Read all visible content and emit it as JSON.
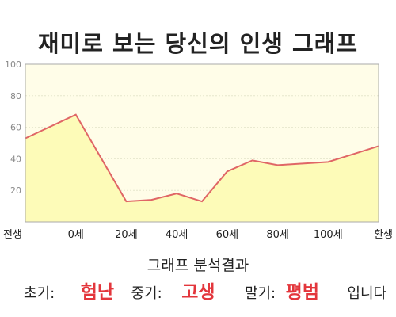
{
  "chart_data": {
    "type": "area",
    "title": "재미로 보는 당신의 인생 그래프",
    "xlabel": "",
    "ylabel": "",
    "ylim": [
      0,
      100
    ],
    "yticks": [
      20,
      40,
      60,
      80,
      100
    ],
    "xticks": [
      "전생",
      "0세",
      "20세",
      "40세",
      "60세",
      "80세",
      "100세",
      "환생"
    ],
    "x": [
      0,
      1,
      2,
      2.5,
      3,
      3.5,
      4,
      4.5,
      5,
      5.5,
      6,
      6.5,
      7
    ],
    "values": [
      53,
      68,
      13,
      14,
      18,
      13,
      32,
      39,
      36,
      37,
      38,
      43,
      48
    ],
    "grid": true,
    "colors": {
      "line": "#e06666",
      "fill": "#fdfbb8",
      "plot_bg": "#fffde8",
      "grid": "#e6e6cc"
    }
  },
  "analysis": {
    "heading": "그래프 분석결과",
    "early_label": "초기:",
    "early_value": "험난",
    "middle_label": "중기:",
    "middle_value": "고생",
    "late_label": "말기:",
    "late_value": "평범",
    "ending": "입니다"
  }
}
